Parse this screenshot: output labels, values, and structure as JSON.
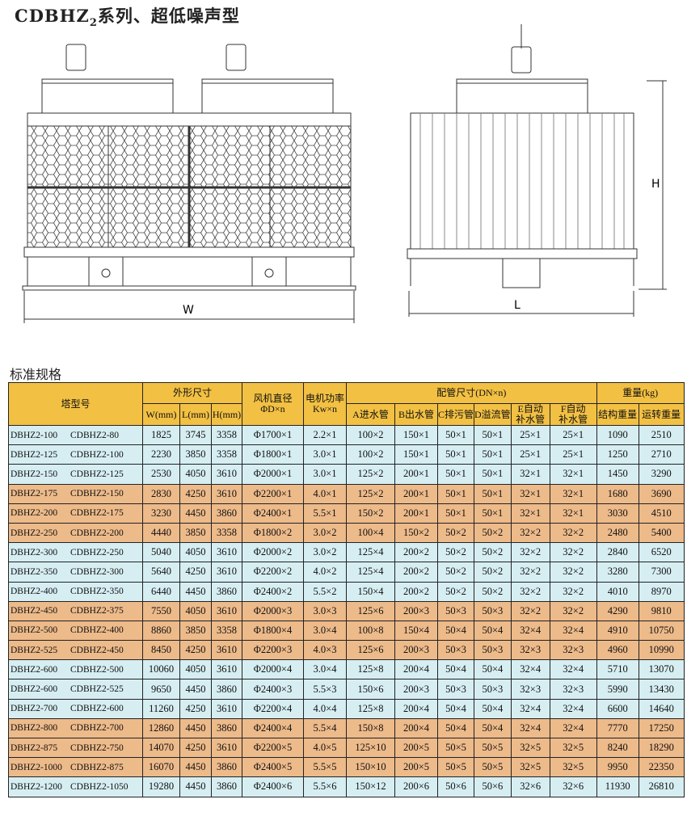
{
  "title": {
    "prefix": "CDBHZ",
    "sub": "2",
    "suffix": "系列、超低噪声型"
  },
  "drawing": {
    "front_dim_label": "W",
    "side_width_label": "L",
    "side_height_label": "H"
  },
  "section_title": "标准规格",
  "table": {
    "headers": {
      "model": "塔型号",
      "dimensions": "外形尺寸",
      "w": "W(mm)",
      "l": "L(mm)",
      "h": "H(mm)",
      "fan_line1": "风机直径",
      "fan_line2": "ΦD×n",
      "motor_line1": "电机功率",
      "motor_line2": "Kw×n",
      "piping": "配管尺寸(DN×n)",
      "a": "A进水管",
      "b": "B出水管",
      "c": "C排污管",
      "d": "D溢流管",
      "e_line1": "E自动",
      "e_line2": "补水管",
      "f_line1": "F自动",
      "f_line2": "补水管",
      "weight": "重量(kg)",
      "struct": "结构重量",
      "run": "运转重量"
    },
    "rows": [
      {
        "color": "blue",
        "m1": "DBHZ2-100",
        "m2": "CDBHZ2-80",
        "w": "1825",
        "l": "3745",
        "h": "3358",
        "fan": "Φ1700×1",
        "motor": "2.2×1",
        "a": "100×2",
        "b": "150×1",
        "c": "50×1",
        "d": "50×1",
        "e": "25×1",
        "f": "25×1",
        "sw": "1090",
        "rw": "2510"
      },
      {
        "color": "blue",
        "m1": "DBHZ2-125",
        "m2": "CDBHZ2-100",
        "w": "2230",
        "l": "3850",
        "h": "3358",
        "fan": "Φ1800×1",
        "motor": "3.0×1",
        "a": "100×2",
        "b": "150×1",
        "c": "50×1",
        "d": "50×1",
        "e": "25×1",
        "f": "25×1",
        "sw": "1250",
        "rw": "2710"
      },
      {
        "color": "blue",
        "m1": "DBHZ2-150",
        "m2": "CDBHZ2-125",
        "w": "2530",
        "l": "4050",
        "h": "3610",
        "fan": "Φ2000×1",
        "motor": "3.0×1",
        "a": "125×2",
        "b": "200×1",
        "c": "50×1",
        "d": "50×1",
        "e": "32×1",
        "f": "32×1",
        "sw": "1450",
        "rw": "3290"
      },
      {
        "color": "orange",
        "m1": "DBHZ2-175",
        "m2": "CDBHZ2-150",
        "w": "2830",
        "l": "4250",
        "h": "3610",
        "fan": "Φ2200×1",
        "motor": "4.0×1",
        "a": "125×2",
        "b": "200×1",
        "c": "50×1",
        "d": "50×1",
        "e": "32×1",
        "f": "32×1",
        "sw": "1680",
        "rw": "3690"
      },
      {
        "color": "orange",
        "m1": "DBHZ2-200",
        "m2": "CDBHZ2-175",
        "w": "3230",
        "l": "4450",
        "h": "3860",
        "fan": "Φ2400×1",
        "motor": "5.5×1",
        "a": "150×2",
        "b": "200×1",
        "c": "50×1",
        "d": "50×1",
        "e": "32×1",
        "f": "32×1",
        "sw": "3030",
        "rw": "4510"
      },
      {
        "color": "orange",
        "m1": "DBHZ2-250",
        "m2": "CDBHZ2-200",
        "w": "4440",
        "l": "3850",
        "h": "3358",
        "fan": "Φ1800×2",
        "motor": "3.0×2",
        "a": "100×4",
        "b": "150×2",
        "c": "50×2",
        "d": "50×2",
        "e": "32×2",
        "f": "32×2",
        "sw": "2480",
        "rw": "5400"
      },
      {
        "color": "blue",
        "m1": "DBHZ2-300",
        "m2": "CDBHZ2-250",
        "w": "5040",
        "l": "4050",
        "h": "3610",
        "fan": "Φ2000×2",
        "motor": "3.0×2",
        "a": "125×4",
        "b": "200×2",
        "c": "50×2",
        "d": "50×2",
        "e": "32×2",
        "f": "32×2",
        "sw": "2840",
        "rw": "6520"
      },
      {
        "color": "blue",
        "m1": "DBHZ2-350",
        "m2": "CDBHZ2-300",
        "w": "5640",
        "l": "4250",
        "h": "3610",
        "fan": "Φ2200×2",
        "motor": "4.0×2",
        "a": "125×4",
        "b": "200×2",
        "c": "50×2",
        "d": "50×2",
        "e": "32×2",
        "f": "32×2",
        "sw": "3280",
        "rw": "7300"
      },
      {
        "color": "blue",
        "m1": "DBHZ2-400",
        "m2": "CDBHZ2-350",
        "w": "6440",
        "l": "4450",
        "h": "3860",
        "fan": "Φ2400×2",
        "motor": "5.5×2",
        "a": "150×4",
        "b": "200×2",
        "c": "50×2",
        "d": "50×2",
        "e": "32×2",
        "f": "32×2",
        "sw": "4010",
        "rw": "8970"
      },
      {
        "color": "orange",
        "m1": "DBHZ2-450",
        "m2": "CDBHZ2-375",
        "w": "7550",
        "l": "4050",
        "h": "3610",
        "fan": "Φ2000×3",
        "motor": "3.0×3",
        "a": "125×6",
        "b": "200×3",
        "c": "50×3",
        "d": "50×3",
        "e": "32×2",
        "f": "32×2",
        "sw": "4290",
        "rw": "9810"
      },
      {
        "color": "orange",
        "m1": "DBHZ2-500",
        "m2": "CDBHZ2-400",
        "w": "8860",
        "l": "3850",
        "h": "3358",
        "fan": "Φ1800×4",
        "motor": "3.0×4",
        "a": "100×8",
        "b": "150×4",
        "c": "50×4",
        "d": "50×4",
        "e": "32×4",
        "f": "32×4",
        "sw": "4910",
        "rw": "10750"
      },
      {
        "color": "orange",
        "m1": "DBHZ2-525",
        "m2": "CDBHZ2-450",
        "w": "8450",
        "l": "4250",
        "h": "3610",
        "fan": "Φ2200×3",
        "motor": "4.0×3",
        "a": "125×6",
        "b": "200×3",
        "c": "50×3",
        "d": "50×3",
        "e": "32×3",
        "f": "32×3",
        "sw": "4960",
        "rw": "10990"
      },
      {
        "color": "blue",
        "m1": "DBHZ2-600",
        "m2": "CDBHZ2-500",
        "w": "10060",
        "l": "4050",
        "h": "3610",
        "fan": "Φ2000×4",
        "motor": "3.0×4",
        "a": "125×8",
        "b": "200×4",
        "c": "50×4",
        "d": "50×4",
        "e": "32×4",
        "f": "32×4",
        "sw": "5710",
        "rw": "13070"
      },
      {
        "color": "blue",
        "m1": "DBHZ2-600",
        "m2": "CDBHZ2-525",
        "w": "9650",
        "l": "4450",
        "h": "3860",
        "fan": "Φ2400×3",
        "motor": "5.5×3",
        "a": "150×6",
        "b": "200×3",
        "c": "50×3",
        "d": "50×3",
        "e": "32×3",
        "f": "32×3",
        "sw": "5990",
        "rw": "13430"
      },
      {
        "color": "blue",
        "m1": "DBHZ2-700",
        "m2": "CDBHZ2-600",
        "w": "11260",
        "l": "4250",
        "h": "3610",
        "fan": "Φ2200×4",
        "motor": "4.0×4",
        "a": "125×8",
        "b": "200×4",
        "c": "50×4",
        "d": "50×4",
        "e": "32×4",
        "f": "32×4",
        "sw": "6600",
        "rw": "14640"
      },
      {
        "color": "orange",
        "m1": "DBHZ2-800",
        "m2": "CDBHZ2-700",
        "w": "12860",
        "l": "4450",
        "h": "3860",
        "fan": "Φ2400×4",
        "motor": "5.5×4",
        "a": "150×8",
        "b": "200×4",
        "c": "50×4",
        "d": "50×4",
        "e": "32×4",
        "f": "32×4",
        "sw": "7770",
        "rw": "17250"
      },
      {
        "color": "orange",
        "m1": "DBHZ2-875",
        "m2": "CDBHZ2-750",
        "w": "14070",
        "l": "4250",
        "h": "3610",
        "fan": "Φ2200×5",
        "motor": "4.0×5",
        "a": "125×10",
        "b": "200×5",
        "c": "50×5",
        "d": "50×5",
        "e": "32×5",
        "f": "32×5",
        "sw": "8240",
        "rw": "18290"
      },
      {
        "color": "orange",
        "m1": "DBHZ2-1000",
        "m2": "CDBHZ2-875",
        "w": "16070",
        "l": "4450",
        "h": "3860",
        "fan": "Φ2400×5",
        "motor": "5.5×5",
        "a": "150×10",
        "b": "200×5",
        "c": "50×5",
        "d": "50×5",
        "e": "32×5",
        "f": "32×5",
        "sw": "9950",
        "rw": "22350"
      },
      {
        "color": "blue",
        "m1": "DBHZ2-1200",
        "m2": "CDBHZ2-1050",
        "w": "19280",
        "l": "4450",
        "h": "3860",
        "fan": "Φ2400×6",
        "motor": "5.5×6",
        "a": "150×12",
        "b": "200×6",
        "c": "50×6",
        "d": "50×6",
        "e": "32×6",
        "f": "32×6",
        "sw": "11930",
        "rw": "26810"
      }
    ]
  }
}
